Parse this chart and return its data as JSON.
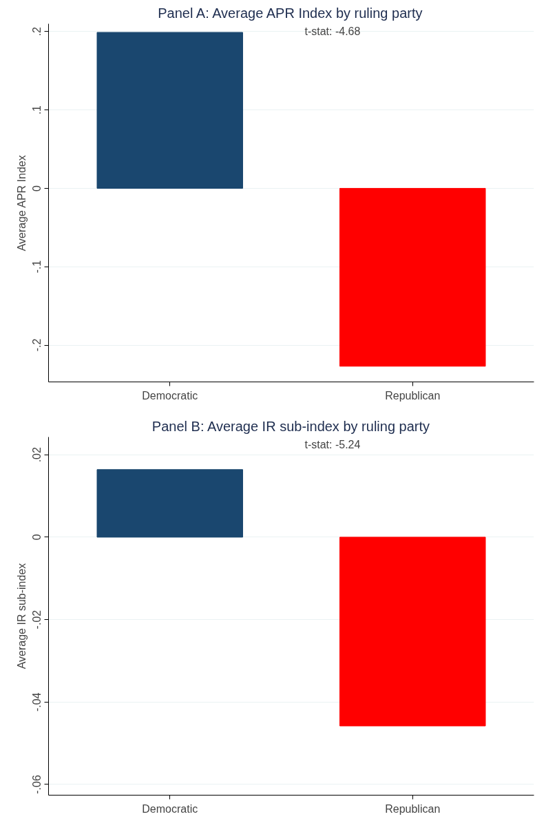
{
  "chart_data": [
    {
      "type": "bar",
      "title": "Panel A: Average APR Index by ruling party",
      "ylabel": "Average APR Index",
      "categories": [
        "Democratic",
        "Republican"
      ],
      "values": [
        0.199,
        -0.227
      ],
      "colors": [
        "#1a476f",
        "#ff0000"
      ],
      "ylim": [
        -0.247,
        0.21
      ],
      "yticks": [
        {
          "value": -0.2,
          "label": "-.2"
        },
        {
          "value": -0.1,
          "label": "-.1"
        },
        0,
        {
          "value": 0.1,
          "label": ".1"
        },
        {
          "value": 0.2,
          "label": ".2"
        }
      ],
      "grid": "y",
      "annotations": [
        "t-stat: -4.68"
      ]
    },
    {
      "type": "bar",
      "title": "Panel B: Average IR sub-index by ruling party",
      "ylabel": "Average IR sub-index",
      "categories": [
        "Democratic",
        "Republican"
      ],
      "values": [
        0.0164,
        -0.0458
      ],
      "colors": [
        "#1a476f",
        "#ff0000"
      ],
      "ylim": [
        -0.0626,
        0.0243
      ],
      "yticks": [
        {
          "value": -0.06,
          "label": "-.06"
        },
        {
          "value": -0.04,
          "label": "-.04"
        },
        {
          "value": -0.02,
          "label": "-.02"
        },
        0,
        {
          "value": 0.02,
          "label": ".02"
        }
      ],
      "grid": "y",
      "annotations": [
        "t-stat: -5.24"
      ]
    }
  ]
}
